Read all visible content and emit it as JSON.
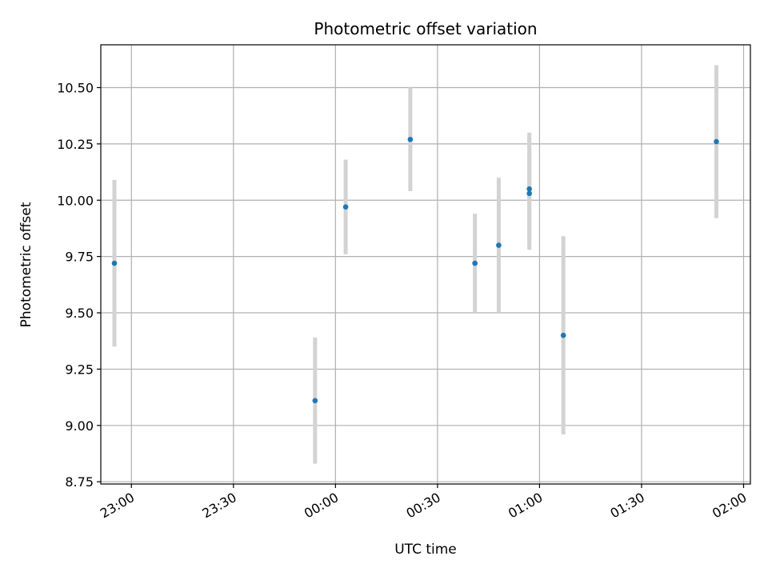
{
  "chart_data": {
    "type": "scatter",
    "title": "Photometric offset variation",
    "xlabel": "UTC time",
    "ylabel": "Photometric offset",
    "x_ticks": [
      "23:00",
      "23:30",
      "00:00",
      "00:30",
      "01:00",
      "01:30",
      "02:00"
    ],
    "y_ticks": [
      "8.75",
      "9.00",
      "9.25",
      "9.50",
      "9.75",
      "10.00",
      "10.25",
      "10.50"
    ],
    "x_range": [
      "22:51",
      "02:02"
    ],
    "ylim": [
      8.74,
      10.69
    ],
    "grid": true,
    "point_color": "#1f77b4",
    "errorbar_color": "#d3d3d3",
    "points": [
      {
        "time": "22:55",
        "y": 9.72,
        "err": 0.37
      },
      {
        "time": "23:54",
        "y": 9.11,
        "err": 0.28
      },
      {
        "time": "00:03",
        "y": 9.97,
        "err": 0.21
      },
      {
        "time": "00:22",
        "y": 10.27,
        "err": 0.23
      },
      {
        "time": "00:41",
        "y": 9.72,
        "err": 0.22
      },
      {
        "time": "00:48",
        "y": 9.8,
        "err": 0.3
      },
      {
        "time": "00:57",
        "y": 10.03,
        "err": 0.25
      },
      {
        "time": "00:57",
        "y": 10.05,
        "err": 0.25
      },
      {
        "time": "01:07",
        "y": 9.4,
        "err": 0.44
      },
      {
        "time": "01:52",
        "y": 10.26,
        "err": 0.34
      }
    ]
  }
}
